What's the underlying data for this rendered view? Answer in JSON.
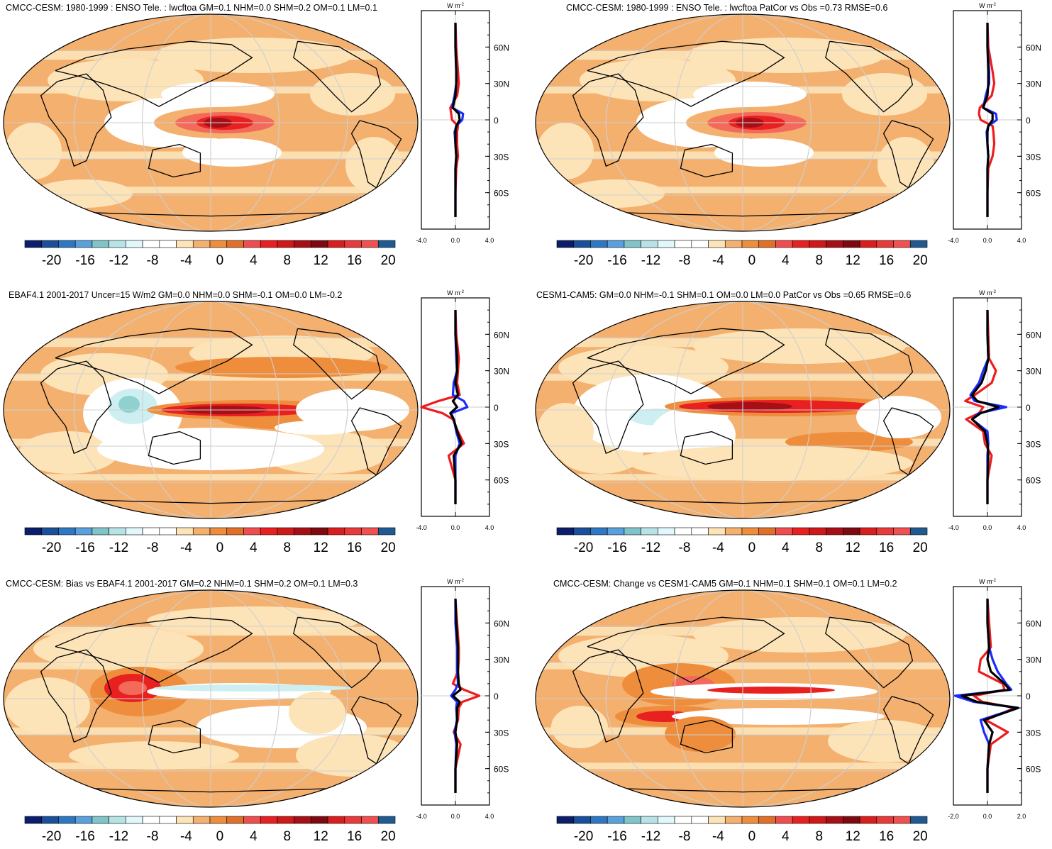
{
  "colorbar": {
    "colors": [
      "#0b1d6b",
      "#1a4f99",
      "#2f77c2",
      "#5aa0dc",
      "#7fc4c8",
      "#b7e3e6",
      "#e2f7fb",
      "#ffffff",
      "#ffffff",
      "#fde4b8",
      "#f4b06f",
      "#ee8e3d",
      "#e06f2a",
      "#f04e4e",
      "#e82020",
      "#cf1818",
      "#a50f15",
      "#7d0a0f",
      "#d81e1e",
      "#e83a3a",
      "#f05050",
      "#1f5a91"
    ],
    "labels": [
      "-20",
      "-16",
      "-12",
      "-8",
      "-4",
      "0",
      "4",
      "8",
      "12",
      "16",
      "20"
    ]
  },
  "zonal_axis": {
    "unit_main": "W m",
    "unit_exp": "-2",
    "lat_labels": [
      "60N",
      "30N",
      "0",
      "30S",
      "60S"
    ]
  },
  "panels": [
    {
      "title": "CMCC-CESM: 1980-1999 : ENSO Tele. : lwcftoa GM=0.1 NHM=0.0 SHM=0.2 OM=0.1 LM=0.1",
      "pattern": "model",
      "xticks": [
        "-4.0",
        "0.0",
        "4.0"
      ]
    },
    {
      "title": "CMCC-CESM: 1980-1999 : ENSO Tele. : lwcftoa PatCor vs Obs =0.73 RMSE=0.6",
      "pattern": "model",
      "xticks": [
        "-4.0",
        "0.0",
        "4.0"
      ]
    },
    {
      "title": "EBAF4.1 2001-2017 Uncer=15 W/m2 GM=0.0 NHM=0.0 SHM=-0.1 OM=0.0 LM=-0.2",
      "pattern": "obs",
      "xticks": [
        "-4.0",
        "0.0",
        "4.0"
      ]
    },
    {
      "title": "CESM1-CAM5: GM=0.0 NHM=-0.1 SHM=0.1 OM=0.0 LM=0.0 PatCor vs Obs =0.65 RMSE=0.6",
      "pattern": "cam5",
      "xticks": [
        "-4.0",
        "0.0",
        "4.0"
      ]
    },
    {
      "title": "CMCC-CESM: Bias vs EBAF4.1 2001-2017 GM=0.2 NHM=0.1 SHM=0.2 OM=0.1 LM=0.3",
      "pattern": "bias",
      "xticks": [
        "-4.0",
        "0.0",
        "4.0"
      ]
    },
    {
      "title": "CMCC-CESM: Change vs CESM1-CAM5 GM=0.1 NHM=0.1 SHM=0.1 OM=0.1 LM=0.2",
      "pattern": "change",
      "xticks": [
        "-2.0",
        "0.0",
        "2.0"
      ]
    }
  ],
  "chart_data": [
    {
      "type": "heatmap",
      "title": "CMCC-CESM: 1980-1999 : ENSO Tele. : lwcftoa GM=0.1 NHM=0.0 SHM=0.2 OM=0.1 LM=0.1",
      "colorbar_range": [
        -20,
        20
      ],
      "zonal_xlim": [
        -4,
        4
      ],
      "zonal_series": [
        {
          "color": "red",
          "lat": [
            80,
            60,
            40,
            30,
            20,
            10,
            5,
            0,
            -5,
            -10,
            -20,
            -30,
            -40,
            -60,
            -80
          ],
          "values": [
            0,
            0.1,
            0.3,
            0.4,
            0.2,
            -0.6,
            -0.5,
            -0.4,
            0.3,
            0.2,
            0.2,
            0.3,
            0.1,
            0,
            0
          ]
        },
        {
          "color": "blue",
          "lat": [
            80,
            60,
            40,
            30,
            20,
            10,
            5,
            0,
            -5,
            -10,
            -20,
            -30,
            -40,
            -60,
            -80
          ],
          "values": [
            0,
            0,
            0.1,
            0.1,
            -0.1,
            -0.4,
            0.9,
            0.8,
            0.1,
            -0.1,
            0,
            0.1,
            0,
            0,
            0
          ]
        },
        {
          "color": "black",
          "lat": [
            80,
            60,
            40,
            30,
            20,
            10,
            5,
            0,
            -5,
            -10,
            -20,
            -30,
            -40,
            -60,
            -80
          ],
          "values": [
            0,
            0,
            0.1,
            0.1,
            0,
            -0.3,
            0.4,
            0.5,
            0.1,
            0,
            0,
            0.1,
            0,
            0,
            0
          ]
        }
      ]
    },
    {
      "type": "heatmap",
      "title": "CMCC-CESM: 1980-1999 : ENSO Tele. : lwcftoa PatCor vs Obs =0.73 RMSE=0.6",
      "colorbar_range": [
        -20,
        20
      ],
      "zonal_xlim": [
        -4,
        4
      ],
      "zonal_series": [
        {
          "color": "red",
          "lat": [
            80,
            60,
            40,
            30,
            20,
            10,
            5,
            0,
            -5,
            -10,
            -20,
            -30,
            -40,
            -60,
            -80
          ],
          "values": [
            0,
            0.1,
            0.6,
            0.8,
            0.5,
            -0.9,
            -1.0,
            -0.8,
            0.6,
            0.7,
            0.8,
            0.6,
            0.1,
            0,
            0
          ]
        },
        {
          "color": "blue",
          "lat": [
            80,
            60,
            40,
            30,
            20,
            10,
            5,
            0,
            -5,
            -10,
            -20,
            -30,
            -40,
            -60,
            -80
          ],
          "values": [
            0,
            0,
            0.2,
            0.2,
            -0.2,
            -0.5,
            1.0,
            1.1,
            0.1,
            -0.1,
            0,
            0.1,
            0,
            0,
            0
          ]
        },
        {
          "color": "black",
          "lat": [
            80,
            60,
            40,
            30,
            20,
            10,
            5,
            0,
            -5,
            -10,
            -20,
            -30,
            -40,
            -60,
            -80
          ],
          "values": [
            0,
            0,
            0.1,
            0.1,
            0,
            -0.5,
            0.6,
            0.6,
            0.1,
            0,
            0,
            0.1,
            0,
            0,
            0
          ]
        }
      ]
    },
    {
      "type": "heatmap",
      "title": "EBAF4.1 2001-2017 Uncer=15 W/m2 GM=0.0 NHM=0.0 SHM=-0.1 OM=0.0 LM=-0.2",
      "colorbar_range": [
        -20,
        20
      ],
      "zonal_xlim": [
        -4,
        4
      ],
      "zonal_series": [
        {
          "color": "red",
          "lat": [
            80,
            60,
            40,
            30,
            20,
            10,
            5,
            0,
            -5,
            -10,
            -20,
            -30,
            -40,
            -60,
            -80
          ],
          "values": [
            0,
            0.1,
            0.4,
            0.3,
            0.2,
            0.5,
            -2,
            -4,
            -1.5,
            -0.3,
            0.3,
            1,
            -0.8,
            0,
            0
          ]
        },
        {
          "color": "blue",
          "lat": [
            80,
            60,
            40,
            30,
            20,
            10,
            5,
            0,
            -5,
            -10,
            -20,
            -30,
            -40,
            -60,
            -80
          ],
          "values": [
            0,
            0,
            0.1,
            0.2,
            -0.2,
            -0.3,
            1,
            1.4,
            -0.5,
            -0.2,
            0.1,
            0.5,
            0,
            0,
            0
          ]
        },
        {
          "color": "black",
          "lat": [
            80,
            60,
            40,
            30,
            20,
            10,
            5,
            0,
            -5,
            -10,
            -20,
            -30,
            -40,
            -60,
            -80
          ],
          "values": [
            0,
            0,
            0.2,
            0.2,
            0,
            0.3,
            -0.3,
            0.2,
            -0.6,
            -0.2,
            0.2,
            0.7,
            -0.2,
            0,
            0
          ]
        }
      ]
    },
    {
      "type": "heatmap",
      "title": "CESM1-CAM5: GM=0.0 NHM=-0.1 SHM=0.1 OM=0.0 LM=0.0 PatCor vs Obs =0.65 RMSE=0.6",
      "colorbar_range": [
        -20,
        20
      ],
      "zonal_xlim": [
        -4,
        4
      ],
      "zonal_series": [
        {
          "color": "red",
          "lat": [
            80,
            60,
            40,
            30,
            20,
            10,
            5,
            0,
            -5,
            -10,
            -20,
            -30,
            -40,
            -60,
            -80
          ],
          "values": [
            0,
            0.1,
            0.2,
            1,
            0.5,
            -1.5,
            -2.6,
            -0.5,
            -1,
            -2.5,
            -0.5,
            -0.3,
            0.5,
            0,
            0
          ]
        },
        {
          "color": "blue",
          "lat": [
            80,
            60,
            40,
            30,
            20,
            10,
            5,
            0,
            -5,
            -10,
            -20,
            -30,
            -40,
            -60,
            -80
          ],
          "values": [
            0,
            0,
            0.1,
            -0.5,
            -1,
            -2,
            -1.5,
            2.2,
            -1,
            -1.8,
            0,
            0.1,
            0,
            0,
            0
          ]
        },
        {
          "color": "black",
          "lat": [
            80,
            60,
            40,
            30,
            20,
            10,
            5,
            0,
            -5,
            -10,
            -20,
            -30,
            -40,
            -60,
            -80
          ],
          "values": [
            0,
            0,
            0.1,
            -0.2,
            -0.7,
            -1.8,
            -1.2,
            1.3,
            -0.8,
            -1.8,
            -0.3,
            0,
            0.1,
            0,
            0
          ]
        }
      ]
    },
    {
      "type": "heatmap",
      "title": "CMCC-CESM: Bias vs EBAF4.1 2001-2017 GM=0.2 NHM=0.1 SHM=0.2 OM=0.1 LM=0.3",
      "colorbar_range": [
        -20,
        20
      ],
      "zonal_xlim": [
        -4,
        4
      ],
      "zonal_series": [
        {
          "color": "red",
          "lat": [
            80,
            60,
            40,
            30,
            20,
            10,
            5,
            0,
            -5,
            -10,
            -20,
            -30,
            -40,
            -60,
            -80
          ],
          "values": [
            0,
            0.2,
            0.4,
            0.4,
            0.3,
            -0.3,
            1,
            2.8,
            0.8,
            0.4,
            0.3,
            -0.2,
            0.6,
            0,
            0
          ]
        },
        {
          "color": "blue",
          "lat": [
            80,
            60,
            40,
            30,
            20,
            10,
            5,
            0,
            -5,
            -10,
            -20,
            -30,
            -40,
            -60,
            -80
          ],
          "values": [
            0,
            0,
            0.2,
            0.2,
            0.2,
            0.3,
            0,
            -0.5,
            0.2,
            0.1,
            0.2,
            -0.1,
            0.1,
            0,
            0
          ]
        },
        {
          "color": "black",
          "lat": [
            80,
            60,
            40,
            30,
            20,
            10,
            5,
            0,
            -5,
            -10,
            -20,
            -30,
            -40,
            -60,
            -80
          ],
          "values": [
            0,
            0.1,
            0.3,
            0.3,
            0.3,
            0.4,
            0.6,
            -0.3,
            0.5,
            0.2,
            0.2,
            0,
            0.2,
            0,
            0
          ]
        }
      ]
    },
    {
      "type": "heatmap",
      "title": "CMCC-CESM: Change vs CESM1-CAM5 GM=0.1 NHM=0.1 SHM=0.1 OM=0.1 LM=0.2",
      "colorbar_range": [
        -20,
        20
      ],
      "zonal_xlim": [
        -2,
        2
      ],
      "zonal_series": [
        {
          "color": "red",
          "lat": [
            80,
            60,
            40,
            30,
            20,
            10,
            5,
            0,
            -5,
            -10,
            -20,
            -30,
            -40,
            -60,
            -80
          ],
          "values": [
            0,
            0.1,
            0.2,
            -0.4,
            -0.5,
            0.9,
            1,
            -0.8,
            -0.3,
            1.6,
            -0.1,
            1.2,
            0.2,
            0,
            0
          ]
        },
        {
          "color": "blue",
          "lat": [
            80,
            60,
            40,
            30,
            20,
            10,
            5,
            0,
            -5,
            -10,
            -20,
            -30,
            -40,
            -60,
            -80
          ],
          "values": [
            0,
            0,
            0.1,
            0.3,
            0.6,
            1.1,
            1.4,
            -1.9,
            -0.8,
            1.8,
            -0.4,
            -0.2,
            0.1,
            0,
            0
          ]
        },
        {
          "color": "black",
          "lat": [
            80,
            60,
            40,
            30,
            20,
            10,
            5,
            0,
            -5,
            -10,
            -20,
            -30,
            -40,
            -60,
            -80
          ],
          "values": [
            0,
            0,
            0.1,
            0,
            0.2,
            1,
            1.3,
            -1.5,
            -0.6,
            1.8,
            -0.2,
            0.3,
            0.1,
            0,
            0
          ]
        }
      ]
    }
  ]
}
